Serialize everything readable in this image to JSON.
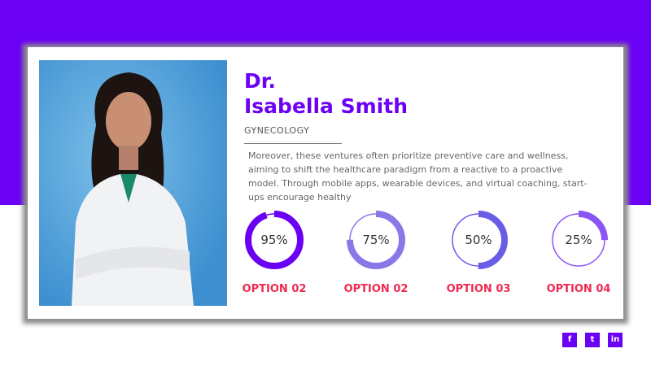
{
  "profile": {
    "title": "Dr.",
    "name": "Isabella Smith",
    "specialty": "GYNECOLOGY",
    "description": "Moreover, these ventures often prioritize preventive care and wellness, aiming to shift the healthcare paradigm from a reactive to a proactive model. Through mobile apps, wearable devices, and virtual coaching, start-ups encourage healthy"
  },
  "stats": [
    {
      "value": 95,
      "label": "95%",
      "option": "OPTION 02",
      "color": "#6a00f4"
    },
    {
      "value": 75,
      "label": "75%",
      "option": "OPTION 02",
      "color": "#8a78e8"
    },
    {
      "value": 50,
      "label": "50%",
      "option": "OPTION 03",
      "color": "#6b5ce7"
    },
    {
      "value": 25,
      "label": "25%",
      "option": "OPTION 04",
      "color": "#8b55f5"
    }
  ],
  "social": [
    {
      "icon": "facebook-icon",
      "glyph": "f"
    },
    {
      "icon": "twitter-icon",
      "glyph": "t"
    },
    {
      "icon": "linkedin-icon",
      "glyph": "in"
    }
  ],
  "colors": {
    "brand": "#6a00f4",
    "accent": "#ef2a50"
  }
}
